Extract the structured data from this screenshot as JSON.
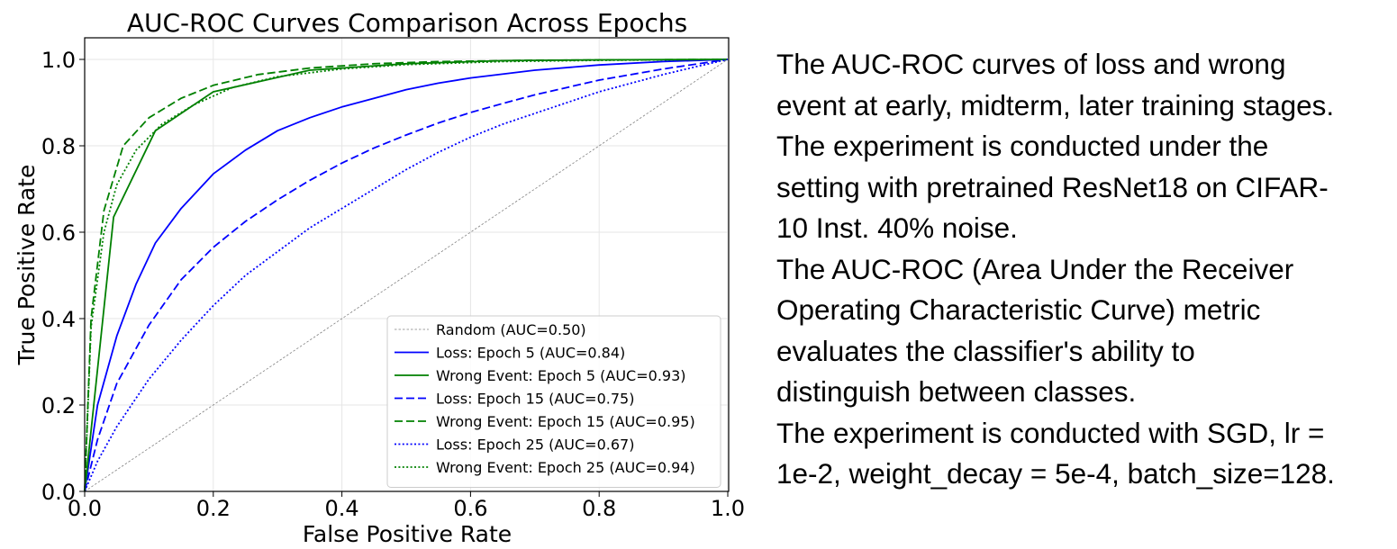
{
  "chart_data": {
    "type": "line",
    "title": "AUC-ROC Curves Comparison Across Epochs",
    "xlabel": "False Positive Rate",
    "ylabel": "True Positive Rate",
    "xlim": [
      0.0,
      1.0
    ],
    "ylim": [
      0.0,
      1.0
    ],
    "xticks": [
      "0.0",
      "0.2",
      "0.4",
      "0.6",
      "0.8",
      "1.0"
    ],
    "yticks": [
      "0.0",
      "0.2",
      "0.4",
      "0.6",
      "0.8",
      "1.0"
    ],
    "grid": true,
    "legend_position": "lower-right",
    "series": [
      {
        "name": "Random (AUC=0.50)",
        "color": "#808080",
        "style": "dotted-thin",
        "x": [
          0,
          1
        ],
        "y": [
          0,
          1
        ]
      },
      {
        "name": "Loss: Epoch 5 (AUC=0.84)",
        "color": "#0000ff",
        "style": "solid",
        "x": [
          0,
          0.02,
          0.05,
          0.08,
          0.11,
          0.15,
          0.2,
          0.25,
          0.3,
          0.35,
          0.4,
          0.45,
          0.5,
          0.55,
          0.6,
          0.7,
          0.8,
          0.9,
          1.0
        ],
        "y": [
          0,
          0.2,
          0.36,
          0.48,
          0.575,
          0.655,
          0.735,
          0.79,
          0.835,
          0.865,
          0.89,
          0.91,
          0.93,
          0.945,
          0.957,
          0.975,
          0.987,
          0.995,
          1.0
        ]
      },
      {
        "name": "Wrong Event: Epoch 5 (AUC=0.93)",
        "color": "#008000",
        "style": "solid",
        "x": [
          0,
          0.045,
          0.11,
          0.2,
          0.35,
          0.5,
          0.65,
          0.8,
          1.0
        ],
        "y": [
          0,
          0.635,
          0.835,
          0.925,
          0.975,
          0.99,
          0.997,
          0.999,
          1.0
        ]
      },
      {
        "name": "Loss: Epoch 15 (AUC=0.75)",
        "color": "#0000ff",
        "style": "dashed",
        "x": [
          0,
          0.02,
          0.05,
          0.1,
          0.15,
          0.2,
          0.25,
          0.3,
          0.35,
          0.4,
          0.45,
          0.5,
          0.55,
          0.6,
          0.65,
          0.7,
          0.8,
          0.9,
          1.0
        ],
        "y": [
          0,
          0.12,
          0.25,
          0.385,
          0.49,
          0.565,
          0.625,
          0.675,
          0.72,
          0.76,
          0.795,
          0.825,
          0.853,
          0.877,
          0.898,
          0.918,
          0.952,
          0.978,
          1.0
        ]
      },
      {
        "name": "Wrong Event: Epoch 15 (AUC=0.95)",
        "color": "#008000",
        "style": "dashed",
        "x": [
          0,
          0.01,
          0.03,
          0.06,
          0.1,
          0.15,
          0.2,
          0.27,
          0.35,
          0.45,
          0.55,
          0.7,
          0.85,
          1.0
        ],
        "y": [
          0,
          0.4,
          0.65,
          0.8,
          0.865,
          0.91,
          0.94,
          0.965,
          0.98,
          0.99,
          0.995,
          0.998,
          0.999,
          1.0
        ]
      },
      {
        "name": "Loss: Epoch 25 (AUC=0.67)",
        "color": "#0000ff",
        "style": "dotted",
        "x": [
          0,
          0.02,
          0.05,
          0.1,
          0.15,
          0.2,
          0.25,
          0.3,
          0.35,
          0.4,
          0.45,
          0.5,
          0.55,
          0.6,
          0.65,
          0.7,
          0.75,
          0.8,
          0.85,
          0.9,
          0.95,
          1.0
        ],
        "y": [
          0,
          0.07,
          0.15,
          0.26,
          0.35,
          0.43,
          0.5,
          0.555,
          0.61,
          0.655,
          0.7,
          0.745,
          0.785,
          0.82,
          0.85,
          0.875,
          0.9,
          0.925,
          0.945,
          0.965,
          0.983,
          1.0
        ]
      },
      {
        "name": "Wrong Event: Epoch 25 (AUC=0.94)",
        "color": "#008000",
        "style": "dotted",
        "x": [
          0,
          0.01,
          0.03,
          0.05,
          0.08,
          0.12,
          0.17,
          0.23,
          0.3,
          0.4,
          0.5,
          0.65,
          0.8,
          1.0
        ],
        "y": [
          0,
          0.38,
          0.6,
          0.71,
          0.79,
          0.85,
          0.895,
          0.935,
          0.96,
          0.978,
          0.988,
          0.995,
          0.998,
          1.0
        ]
      }
    ]
  },
  "caption": {
    "lines": [
      "The AUC-ROC curves of loss and wrong",
      "event at early, midterm, later training stages.",
      "The experiment is conducted under the",
      "setting with pretrained ResNet18 on CIFAR-",
      "10 Inst. 40% noise.",
      "The AUC-ROC (Area Under the Receiver",
      "Operating Characteristic Curve) metric",
      "evaluates the classifier's ability to",
      "distinguish between classes.",
      "The experiment is conducted with SGD, lr =",
      "1e-2, weight_decay = 5e-4, batch_size=128."
    ]
  }
}
